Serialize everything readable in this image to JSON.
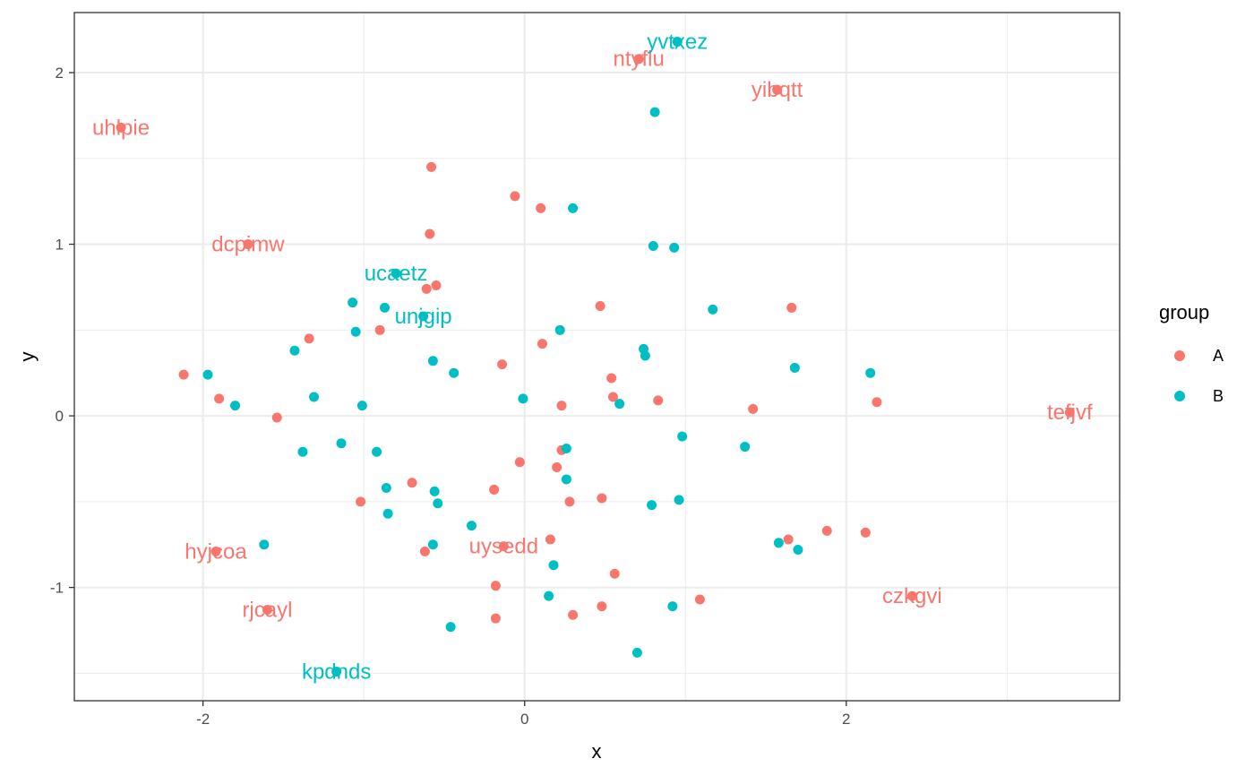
{
  "colors": {
    "A": "#F8766D",
    "B": "#00BFC4"
  },
  "chart_data": {
    "type": "scatter",
    "xlabel": "x",
    "ylabel": "y",
    "xlim": [
      -2.8,
      3.7
    ],
    "ylim": [
      -1.66,
      2.35
    ],
    "x_ticks": [
      -2,
      0,
      2
    ],
    "y_ticks": [
      -1,
      0,
      1,
      2
    ],
    "x_tick_labels": [
      "-2",
      "0",
      "2"
    ],
    "y_tick_labels": [
      "-1",
      "0",
      "1",
      "2"
    ],
    "grid": true,
    "legend": {
      "title": "group",
      "position": "right",
      "entries": [
        "A",
        "B"
      ]
    },
    "series": [
      {
        "name": "A",
        "points": [
          {
            "x": -2.51,
            "y": 1.68,
            "label": "uhlpie"
          },
          {
            "x": -1.72,
            "y": 1.0,
            "label": "dcpimw"
          },
          {
            "x": 0.71,
            "y": 2.08,
            "label": "ntyflu"
          },
          {
            "x": 1.57,
            "y": 1.9,
            "label": "yibqtt"
          },
          {
            "x": 3.39,
            "y": 0.02,
            "label": "tefjvf"
          },
          {
            "x": -1.92,
            "y": -0.79,
            "label": "hyjcoa"
          },
          {
            "x": -1.6,
            "y": -1.13,
            "label": "rjcayl"
          },
          {
            "x": -0.13,
            "y": -0.76,
            "label": "uysedd"
          },
          {
            "x": 2.41,
            "y": -1.05,
            "label": "czkgvi"
          },
          {
            "x": -0.58,
            "y": 1.45
          },
          {
            "x": -0.06,
            "y": 1.28
          },
          {
            "x": 0.1,
            "y": 1.21
          },
          {
            "x": -0.59,
            "y": 1.06
          },
          {
            "x": -0.61,
            "y": 0.74
          },
          {
            "x": -0.55,
            "y": 0.76
          },
          {
            "x": 0.47,
            "y": 0.64
          },
          {
            "x": 1.66,
            "y": 0.63
          },
          {
            "x": -0.9,
            "y": 0.5
          },
          {
            "x": -1.34,
            "y": 0.45
          },
          {
            "x": 0.11,
            "y": 0.42
          },
          {
            "x": -0.14,
            "y": 0.3
          },
          {
            "x": 0.54,
            "y": 0.22
          },
          {
            "x": -2.12,
            "y": 0.24
          },
          {
            "x": -1.9,
            "y": 0.1
          },
          {
            "x": 0.55,
            "y": 0.11
          },
          {
            "x": 0.83,
            "y": 0.09
          },
          {
            "x": 0.23,
            "y": 0.06
          },
          {
            "x": 2.19,
            "y": 0.08
          },
          {
            "x": 1.42,
            "y": 0.04
          },
          {
            "x": -1.54,
            "y": -0.01
          },
          {
            "x": 0.23,
            "y": -0.2
          },
          {
            "x": -0.03,
            "y": -0.27
          },
          {
            "x": 0.2,
            "y": -0.3
          },
          {
            "x": -0.7,
            "y": -0.39
          },
          {
            "x": -0.19,
            "y": -0.43
          },
          {
            "x": 0.48,
            "y": -0.48
          },
          {
            "x": 0.28,
            "y": -0.5
          },
          {
            "x": -1.02,
            "y": -0.5
          },
          {
            "x": 1.88,
            "y": -0.67
          },
          {
            "x": 2.12,
            "y": -0.68
          },
          {
            "x": 1.64,
            "y": -0.72
          },
          {
            "x": 0.16,
            "y": -0.72
          },
          {
            "x": -0.62,
            "y": -0.79
          },
          {
            "x": 0.56,
            "y": -0.92
          },
          {
            "x": -0.18,
            "y": -0.99
          },
          {
            "x": 1.09,
            "y": -1.07
          },
          {
            "x": 0.48,
            "y": -1.11
          },
          {
            "x": 0.3,
            "y": -1.16
          },
          {
            "x": -0.18,
            "y": -1.18
          }
        ]
      },
      {
        "name": "B",
        "points": [
          {
            "x": 0.95,
            "y": 2.18,
            "label": "yvtxez"
          },
          {
            "x": -0.8,
            "y": 0.83,
            "label": "ucaetz"
          },
          {
            "x": -0.63,
            "y": 0.58,
            "label": "unjgip"
          },
          {
            "x": -1.17,
            "y": -1.49,
            "label": "kpdnds"
          },
          {
            "x": 0.81,
            "y": 1.77
          },
          {
            "x": 0.3,
            "y": 1.21
          },
          {
            "x": 0.8,
            "y": 0.99
          },
          {
            "x": 0.93,
            "y": 0.98
          },
          {
            "x": -1.07,
            "y": 0.66
          },
          {
            "x": -0.87,
            "y": 0.63
          },
          {
            "x": 1.17,
            "y": 0.62
          },
          {
            "x": 0.22,
            "y": 0.5
          },
          {
            "x": -1.05,
            "y": 0.49
          },
          {
            "x": 0.74,
            "y": 0.39
          },
          {
            "x": -1.43,
            "y": 0.38
          },
          {
            "x": 0.75,
            "y": 0.35
          },
          {
            "x": -0.57,
            "y": 0.32
          },
          {
            "x": 1.68,
            "y": 0.28
          },
          {
            "x": -0.44,
            "y": 0.25
          },
          {
            "x": 2.15,
            "y": 0.25
          },
          {
            "x": -1.97,
            "y": 0.24
          },
          {
            "x": -1.31,
            "y": 0.11
          },
          {
            "x": -0.01,
            "y": 0.1
          },
          {
            "x": 0.59,
            "y": 0.07
          },
          {
            "x": -1.8,
            "y": 0.06
          },
          {
            "x": -1.01,
            "y": 0.06
          },
          {
            "x": 0.98,
            "y": -0.12
          },
          {
            "x": -1.14,
            "y": -0.16
          },
          {
            "x": 1.37,
            "y": -0.18
          },
          {
            "x": 0.26,
            "y": -0.19
          },
          {
            "x": -1.38,
            "y": -0.21
          },
          {
            "x": -0.92,
            "y": -0.21
          },
          {
            "x": 0.26,
            "y": -0.37
          },
          {
            "x": -0.86,
            "y": -0.42
          },
          {
            "x": -0.56,
            "y": -0.44
          },
          {
            "x": 0.96,
            "y": -0.49
          },
          {
            "x": -0.54,
            "y": -0.51
          },
          {
            "x": 0.79,
            "y": -0.52
          },
          {
            "x": -0.85,
            "y": -0.57
          },
          {
            "x": -0.33,
            "y": -0.64
          },
          {
            "x": 1.58,
            "y": -0.74
          },
          {
            "x": -1.62,
            "y": -0.75
          },
          {
            "x": -0.57,
            "y": -0.75
          },
          {
            "x": 1.7,
            "y": -0.78
          },
          {
            "x": 0.18,
            "y": -0.87
          },
          {
            "x": 0.15,
            "y": -1.05
          },
          {
            "x": 0.92,
            "y": -1.11
          },
          {
            "x": -0.46,
            "y": -1.23
          },
          {
            "x": 0.7,
            "y": -1.38
          }
        ]
      }
    ]
  }
}
